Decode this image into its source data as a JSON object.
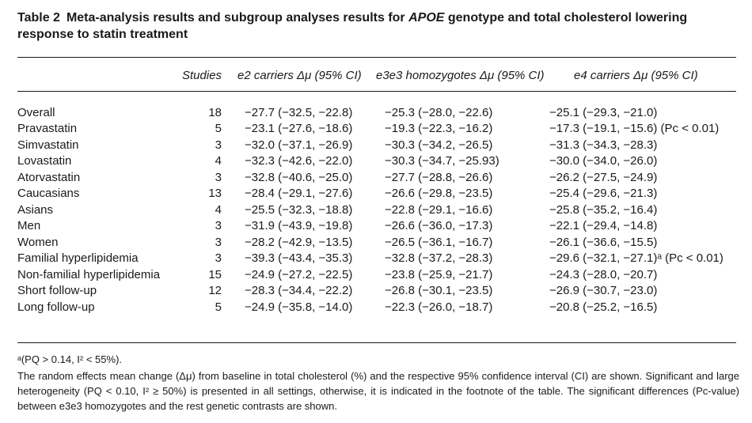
{
  "caption": {
    "number": "Table 2",
    "text_before": "Meta-analysis results and subgroup analyses results for ",
    "gene": "APOE",
    "text_after": " genotype and total cholesterol lowering response to statin treatment"
  },
  "header": {
    "studies": "Studies",
    "e2": "e2 carriers Δμ (95% CI)",
    "e3": "e3e3 homozygotes Δμ (95% CI)",
    "e4": "e4 carriers Δμ (95% CI)"
  },
  "rows": [
    {
      "label": "Overall",
      "studies": "18",
      "e2": "−27.7 (−32.5, −22.8)",
      "e3": "−25.3 (−28.0, −22.6)",
      "e4": "−25.1 (−29.3, −21.0)"
    },
    {
      "label": "Pravastatin",
      "studies": "5",
      "e2": "−23.1 (−27.6, −18.6)",
      "e3": "−19.3 (−22.3, −16.2)",
      "e4": "−17.3 (−19.1, −15.6) (Pc < 0.01)"
    },
    {
      "label": "Simvastatin",
      "studies": "3",
      "e2": "−32.0 (−37.1, −26.9)",
      "e3": "−30.3 (−34.2, −26.5)",
      "e4": "−31.3 (−34.3, −28.3)"
    },
    {
      "label": "Lovastatin",
      "studies": "4",
      "e2": "−32.3 (−42.6, −22.0)",
      "e3": "−30.3 (−34.7, −25.93)",
      "e4": "−30.0 (−34.0, −26.0)"
    },
    {
      "label": "Atorvastatin",
      "studies": "3",
      "e2": "−32.8 (−40.6, −25.0)",
      "e3": "−27.7 (−28.8, −26.6)",
      "e4": "−26.2 (−27.5, −24.9)"
    },
    {
      "label": "Caucasians",
      "studies": "13",
      "e2": "−28.4 (−29.1, −27.6)",
      "e3": "−26.6 (−29.8, −23.5)",
      "e4": "−25.4 (−29.6, −21.3)"
    },
    {
      "label": "Asians",
      "studies": "4",
      "e2": "−25.5 (−32.3, −18.8)",
      "e3": "−22.8 (−29.1, −16.6)",
      "e4": "−25.8 (−35.2, −16.4)"
    },
    {
      "label": "Men",
      "studies": "3",
      "e2": "−31.9 (−43.9, −19.8)",
      "e3": "−26.6 (−36.0, −17.3)",
      "e4": "−22.1 (−29.4, −14.8)"
    },
    {
      "label": "Women",
      "studies": "3",
      "e2": "−28.2 (−42.9, −13.5)",
      "e3": "−26.5 (−36.1, −16.7)",
      "e4": "−26.1 (−36.6, −15.5)"
    },
    {
      "label": "Familial hyperlipidemia",
      "studies": "3",
      "e2": "−39.3 (−43.4, −35.3)",
      "e3": "−32.8 (−37.2, −28.3)",
      "e4": "−29.6 (−32.1, −27.1)ᵃ (Pc < 0.01)"
    },
    {
      "label": "Non-familial hyperlipidemia",
      "studies": "15",
      "e2": "−24.9 (−27.2, −22.5)",
      "e3": "−23.8 (−25.9, −21.7)",
      "e4": "−24.3 (−28.0, −20.7)"
    },
    {
      "label": "Short follow-up",
      "studies": "12",
      "e2": "−28.3 (−34.4, −22.2)",
      "e3": "−26.8 (−30.1, −23.5)",
      "e4": "−26.9 (−30.7, −23.0)"
    },
    {
      "label": "Long follow-up",
      "studies": "5",
      "e2": "−24.9 (−35.8, −14.0)",
      "e3": "−22.3 (−26.0, −18.7)",
      "e4": "−20.8 (−25.2, −16.5)"
    }
  ],
  "footnotes": {
    "a": "ᵃ(PQ > 0.14, I² < 55%).",
    "b": "The random effects mean change (Δμ) from baseline in total cholesterol (%) and the respective 95% confidence interval (CI) are shown. Significant and large heterogeneity (PQ < 0.10, I² ≥ 50%) is presented in all settings, otherwise, it is indicated in the footnote of the table. The significant differences (Pc-value) between e3e3 homozygotes and the rest genetic contrasts are shown."
  }
}
